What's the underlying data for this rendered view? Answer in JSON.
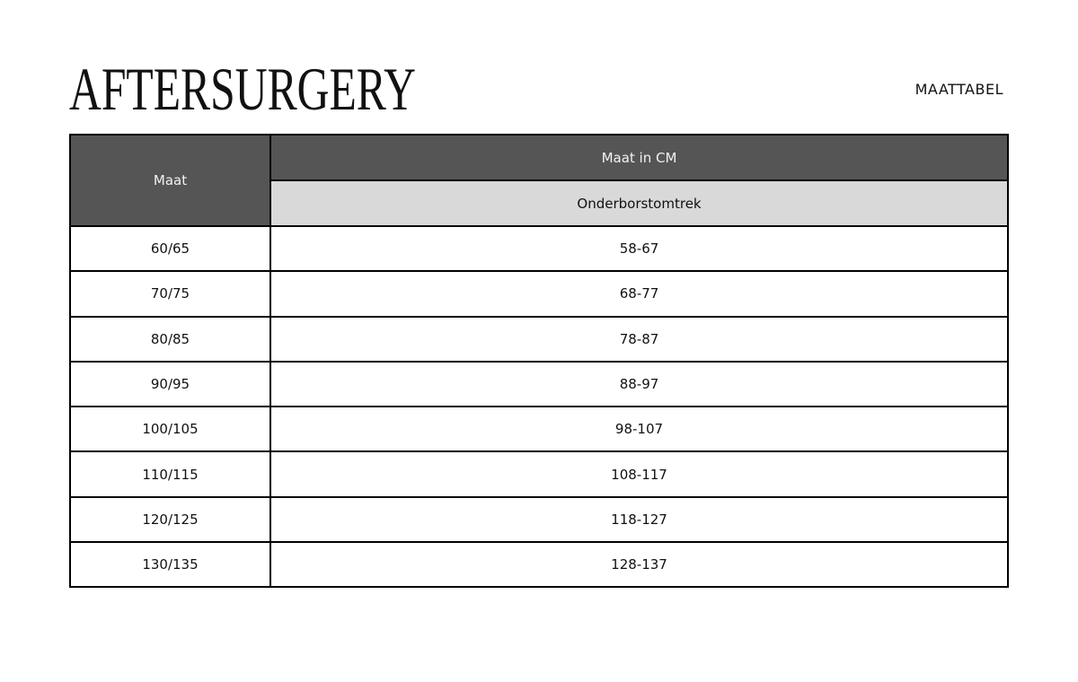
{
  "header": {
    "logo_text": "AFTERSURGERY",
    "doc_label": "MAATTABEL"
  },
  "table": {
    "col_size": "Maat",
    "group_header": "Maat in CM",
    "sub_header": "Onderborstomtrek",
    "rows": [
      {
        "size": "60/65",
        "range": "58-67"
      },
      {
        "size": "70/75",
        "range": "68-77"
      },
      {
        "size": "80/85",
        "range": "78-87"
      },
      {
        "size": "90/95",
        "range": "88-97"
      },
      {
        "size": "100/105",
        "range": "98-107"
      },
      {
        "size": "110/115",
        "range": "108-117"
      },
      {
        "size": "120/125",
        "range": "118-127"
      },
      {
        "size": "130/135",
        "range": "128-137"
      }
    ]
  },
  "colors": {
    "header_dark": "#555555",
    "header_light": "#d9d9d9",
    "border": "#000000"
  }
}
